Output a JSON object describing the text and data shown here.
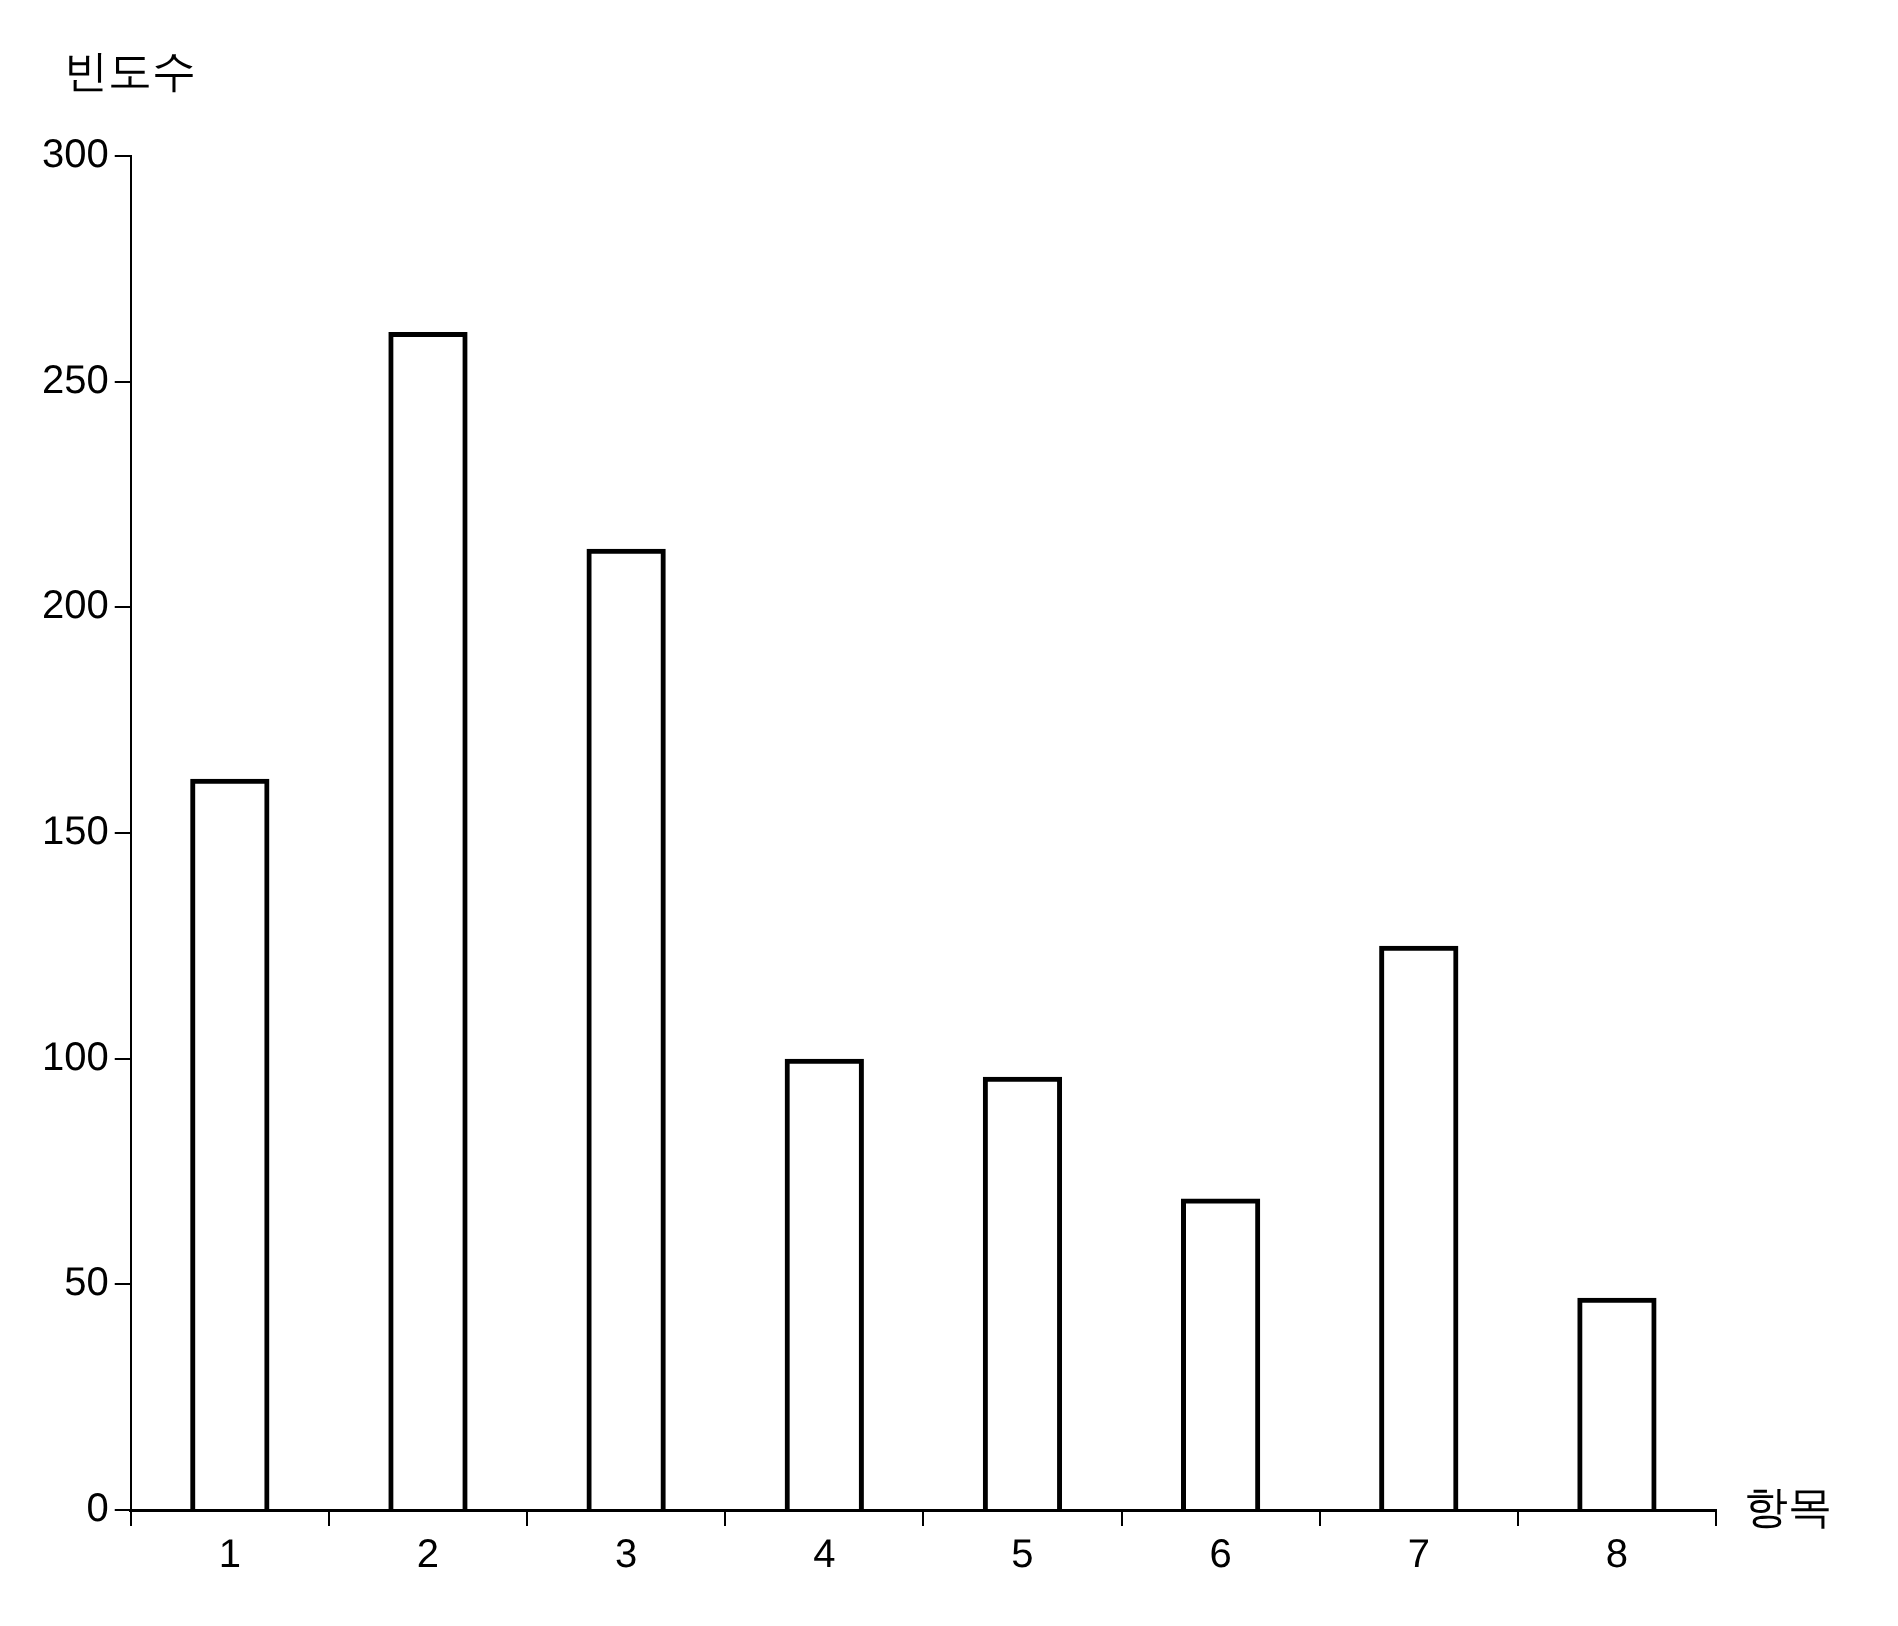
{
  "chart_data": {
    "type": "bar",
    "xlabel": "항목",
    "ylabel": "빈도수",
    "categories": [
      "1",
      "2",
      "3",
      "4",
      "5",
      "6",
      "7",
      "8"
    ],
    "values": [
      162,
      261,
      213,
      100,
      96,
      69,
      125,
      47
    ],
    "color": "#000000",
    "ylim": [
      0,
      300
    ],
    "yticks": [
      0,
      50,
      100,
      150,
      200,
      250,
      300
    ],
    "grid": false
  }
}
